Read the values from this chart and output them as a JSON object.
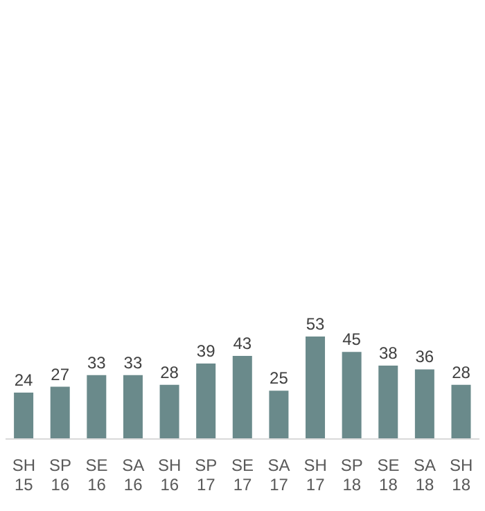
{
  "chart_data": {
    "type": "bar",
    "categories": [
      "SH\n15",
      "SP\n16",
      "SE\n16",
      "SA\n16",
      "SH\n16",
      "SP\n17",
      "SE\n17",
      "SA\n17",
      "SH\n17",
      "SP\n18",
      "SE\n18",
      "SA\n18",
      "SH\n18"
    ],
    "values": [
      24,
      27,
      33,
      33,
      28,
      39,
      43,
      25,
      53,
      45,
      38,
      36,
      28
    ],
    "color": "#6a8a8b",
    "data_labels": true,
    "grid": false,
    "legend": false
  }
}
